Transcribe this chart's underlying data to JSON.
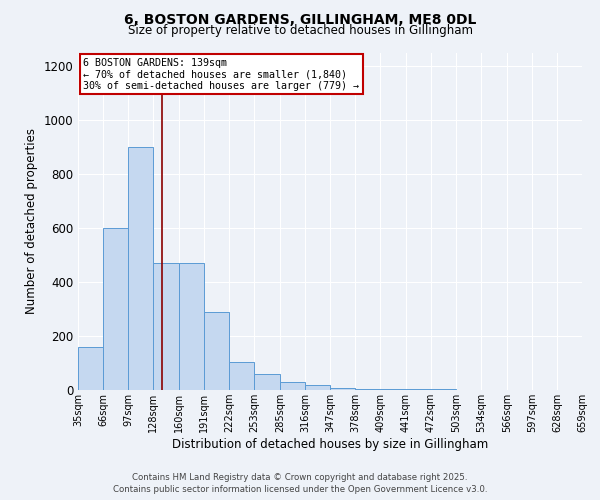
{
  "title_line1": "6, BOSTON GARDENS, GILLINGHAM, ME8 0DL",
  "title_line2": "Size of property relative to detached houses in Gillingham",
  "xlabel": "Distribution of detached houses by size in Gillingham",
  "ylabel": "Number of detached properties",
  "bin_edges": [
    35,
    66,
    97,
    128,
    160,
    191,
    222,
    253,
    285,
    316,
    347,
    378,
    409,
    441,
    472,
    503,
    534,
    566,
    597,
    628,
    659
  ],
  "bar_heights": [
    160,
    600,
    900,
    470,
    470,
    290,
    105,
    60,
    30,
    20,
    8,
    5,
    3,
    3,
    2,
    1,
    1,
    0,
    0,
    0
  ],
  "bar_color": "#c5d8f0",
  "bar_edge_color": "#5b9bd5",
  "property_size": 139,
  "annotation_title": "6 BOSTON GARDENS: 139sqm",
  "annotation_line2": "← 70% of detached houses are smaller (1,840)",
  "annotation_line3": "30% of semi-detached houses are larger (779) →",
  "annotation_box_color": "#c00000",
  "vline_color": "#8b0000",
  "ylim": [
    0,
    1250
  ],
  "yticks": [
    0,
    200,
    400,
    600,
    800,
    1000,
    1200
  ],
  "background_color": "#eef2f8",
  "grid_color": "#ffffff",
  "footer_line1": "Contains HM Land Registry data © Crown copyright and database right 2025.",
  "footer_line2": "Contains public sector information licensed under the Open Government Licence v3.0."
}
